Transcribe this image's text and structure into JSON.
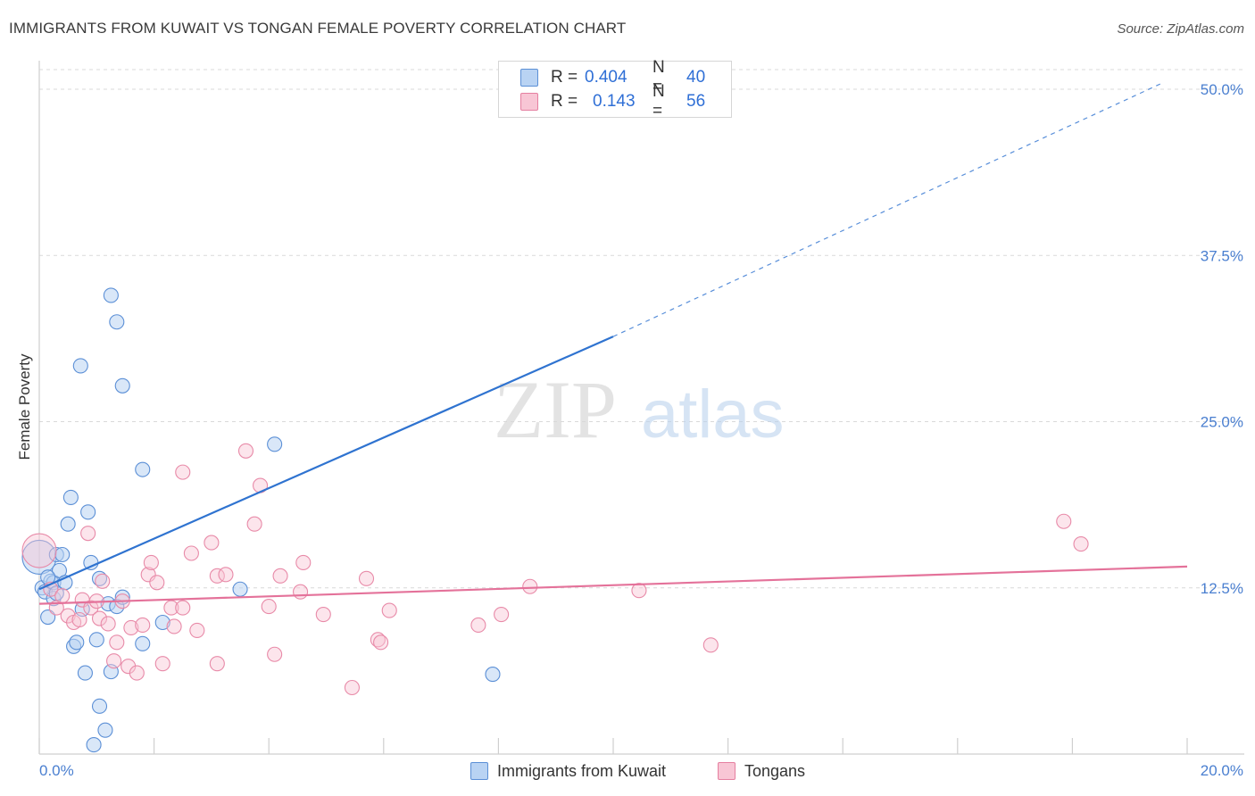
{
  "title": "IMMIGRANTS FROM KUWAIT VS TONGAN FEMALE POVERTY CORRELATION CHART",
  "source": "Source: ZipAtlas.com",
  "watermark": {
    "zip": "ZIP",
    "atlas": "atlas"
  },
  "legend": {
    "r_label": "R =",
    "n_label": "N =",
    "rows": [
      {
        "r": "0.404",
        "n": "40",
        "fill": "#b9d3f3",
        "stroke": "#5b8fd6"
      },
      {
        "r": "0.143",
        "n": "56",
        "fill": "#f8c6d5",
        "stroke": "#e57fa0"
      }
    ]
  },
  "bottom_legend": [
    "Immigrants from Kuwait",
    "Tongans"
  ],
  "colors": {
    "blue": "#2f73d0",
    "pink": "#e4729a",
    "blue_fill": "#b9d3f3",
    "pink_fill": "#f8c6d5",
    "grid": "#d9d9d9"
  },
  "chart_data": {
    "type": "scatter",
    "title": "IMMIGRANTS FROM KUWAIT VS TONGAN FEMALE POVERTY CORRELATION CHART",
    "xlabel": "",
    "ylabel": "Female Poverty",
    "xlim": [
      0,
      20
    ],
    "ylim": [
      0,
      50
    ],
    "x_tick_labels": [
      "0.0%",
      "20.0%"
    ],
    "y_ticks": [
      12.5,
      25.0,
      37.5,
      50.0
    ],
    "y_tick_labels": [
      "12.5%",
      "25.0%",
      "37.5%",
      "50.0%"
    ],
    "series": [
      {
        "name": "Immigrants from Kuwait",
        "color": "#2f73d0",
        "trend": {
          "x0": 0,
          "y0": 12.4,
          "x1": 10,
          "y1": 31.4,
          "dashed_to_x": 20,
          "dashed_to_y": 50.4
        },
        "points": [
          [
            0.0,
            14.8,
            "big"
          ],
          [
            0.05,
            12.5
          ],
          [
            0.1,
            12.2
          ],
          [
            0.15,
            10.3
          ],
          [
            0.2,
            13.0
          ],
          [
            0.25,
            12.9
          ],
          [
            0.3,
            15.0
          ],
          [
            0.35,
            13.8
          ],
          [
            0.4,
            15.0
          ],
          [
            0.5,
            17.3
          ],
          [
            0.55,
            19.3
          ],
          [
            0.6,
            8.1
          ],
          [
            0.65,
            8.4
          ],
          [
            0.72,
            29.2
          ],
          [
            0.75,
            10.9
          ],
          [
            0.8,
            6.1
          ],
          [
            0.85,
            18.2
          ],
          [
            0.9,
            14.4
          ],
          [
            1.0,
            8.6
          ],
          [
            1.05,
            13.2
          ],
          [
            1.05,
            3.6
          ],
          [
            1.15,
            1.8
          ],
          [
            1.2,
            11.3
          ],
          [
            1.25,
            34.5
          ],
          [
            1.25,
            6.2
          ],
          [
            1.35,
            11.1
          ],
          [
            1.35,
            32.5
          ],
          [
            1.45,
            27.7
          ],
          [
            1.45,
            11.8
          ],
          [
            1.8,
            21.4
          ],
          [
            1.8,
            8.3
          ],
          [
            2.15,
            9.9
          ],
          [
            3.5,
            12.4
          ],
          [
            4.1,
            23.3
          ],
          [
            7.9,
            6.0
          ],
          [
            0.95,
            0.7
          ],
          [
            0.45,
            12.9
          ],
          [
            0.25,
            11.7
          ],
          [
            0.3,
            12.1
          ],
          [
            0.15,
            13.3
          ]
        ]
      },
      {
        "name": "Tongans",
        "color": "#e4729a",
        "trend": {
          "x0": 0,
          "y0": 11.3,
          "x1": 20,
          "y1": 14.1
        },
        "points": [
          [
            0.0,
            15.3,
            "big"
          ],
          [
            0.2,
            12.4
          ],
          [
            0.3,
            11.0
          ],
          [
            0.4,
            11.9
          ],
          [
            0.5,
            10.4
          ],
          [
            0.6,
            9.9
          ],
          [
            0.7,
            10.1
          ],
          [
            0.75,
            11.6
          ],
          [
            0.85,
            16.6
          ],
          [
            0.9,
            11.0
          ],
          [
            1.0,
            11.5
          ],
          [
            1.05,
            10.2
          ],
          [
            1.1,
            13.0
          ],
          [
            1.2,
            9.8
          ],
          [
            1.3,
            7.0
          ],
          [
            1.35,
            8.4
          ],
          [
            1.45,
            11.5
          ],
          [
            1.55,
            6.6
          ],
          [
            1.6,
            9.5
          ],
          [
            1.7,
            6.1
          ],
          [
            1.8,
            9.7
          ],
          [
            1.9,
            13.5
          ],
          [
            1.95,
            14.4
          ],
          [
            2.05,
            12.9
          ],
          [
            2.15,
            6.8
          ],
          [
            2.3,
            11.0
          ],
          [
            2.35,
            9.6
          ],
          [
            2.5,
            11.0
          ],
          [
            2.5,
            21.2
          ],
          [
            2.65,
            15.1
          ],
          [
            2.75,
            9.3
          ],
          [
            3.0,
            15.9
          ],
          [
            3.1,
            6.8
          ],
          [
            3.1,
            13.4
          ],
          [
            3.25,
            13.5
          ],
          [
            3.6,
            22.8
          ],
          [
            3.75,
            17.3
          ],
          [
            3.85,
            20.2
          ],
          [
            4.0,
            11.1
          ],
          [
            4.1,
            7.5
          ],
          [
            4.2,
            13.4
          ],
          [
            4.55,
            12.2
          ],
          [
            4.6,
            14.4
          ],
          [
            4.95,
            10.5
          ],
          [
            5.45,
            5.0
          ],
          [
            5.7,
            13.2
          ],
          [
            5.9,
            8.6
          ],
          [
            5.95,
            8.4
          ],
          [
            6.1,
            10.8
          ],
          [
            7.65,
            9.7
          ],
          [
            8.05,
            10.5
          ],
          [
            8.55,
            12.6
          ],
          [
            10.45,
            12.3
          ],
          [
            11.7,
            8.2
          ],
          [
            17.85,
            17.5
          ],
          [
            18.15,
            15.8
          ]
        ]
      }
    ]
  }
}
